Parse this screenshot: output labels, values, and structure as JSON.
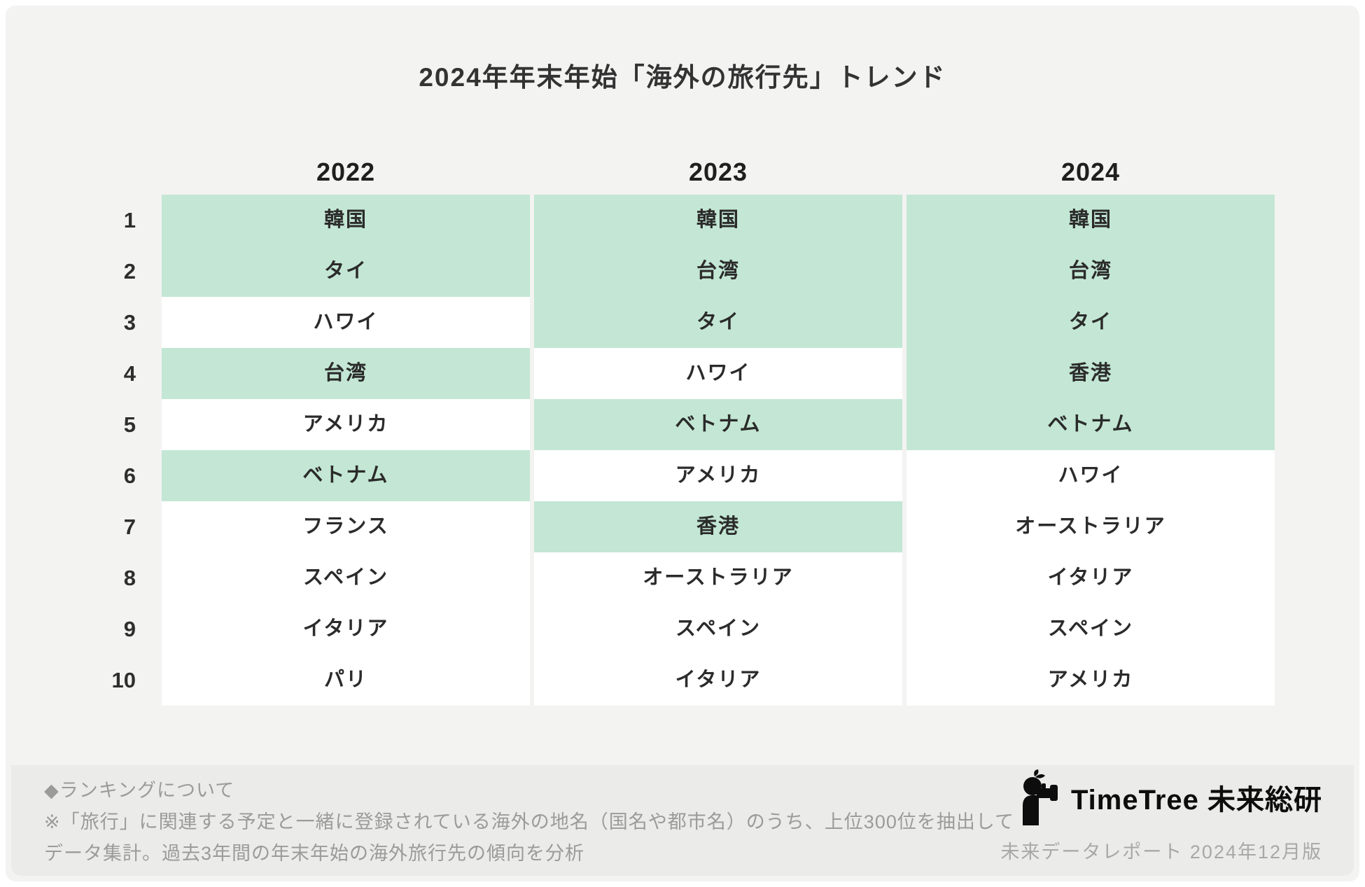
{
  "chart_data": {
    "type": "table",
    "title": "2024年年末年始「海外の旅行先」トレンド",
    "rank_labels": [
      "1",
      "2",
      "3",
      "4",
      "5",
      "6",
      "7",
      "8",
      "9",
      "10"
    ],
    "columns": [
      {
        "year": "2022",
        "rows": [
          {
            "name": "韓国",
            "highlight": true
          },
          {
            "name": "タイ",
            "highlight": true
          },
          {
            "name": "ハワイ",
            "highlight": false
          },
          {
            "name": "台湾",
            "highlight": true
          },
          {
            "name": "アメリカ",
            "highlight": false
          },
          {
            "name": "ベトナム",
            "highlight": true
          },
          {
            "name": "フランス",
            "highlight": false
          },
          {
            "name": "スペイン",
            "highlight": false
          },
          {
            "name": "イタリア",
            "highlight": false
          },
          {
            "name": "パリ",
            "highlight": false
          }
        ]
      },
      {
        "year": "2023",
        "rows": [
          {
            "name": "韓国",
            "highlight": true
          },
          {
            "name": "台湾",
            "highlight": true
          },
          {
            "name": "タイ",
            "highlight": true
          },
          {
            "name": "ハワイ",
            "highlight": false
          },
          {
            "name": "ベトナム",
            "highlight": true
          },
          {
            "name": "アメリカ",
            "highlight": false
          },
          {
            "name": "香港",
            "highlight": true
          },
          {
            "name": "オーストラリア",
            "highlight": false
          },
          {
            "name": "スペイン",
            "highlight": false
          },
          {
            "name": "イタリア",
            "highlight": false
          }
        ]
      },
      {
        "year": "2024",
        "rows": [
          {
            "name": "韓国",
            "highlight": true
          },
          {
            "name": "台湾",
            "highlight": true
          },
          {
            "name": "タイ",
            "highlight": true
          },
          {
            "name": "香港",
            "highlight": true
          },
          {
            "name": "ベトナム",
            "highlight": true
          },
          {
            "name": "ハワイ",
            "highlight": false
          },
          {
            "name": "オーストラリア",
            "highlight": false
          },
          {
            "name": "イタリア",
            "highlight": false
          },
          {
            "name": "スペイン",
            "highlight": false
          },
          {
            "name": "アメリカ",
            "highlight": false
          }
        ]
      }
    ],
    "legend_position": "none",
    "grid": false
  },
  "footer": {
    "notes": [
      "◆ランキングについて",
      "※「旅行」に関連する予定と一緒に登録されている海外の地名（国名や都市名）のうち、上位300位を抽出して",
      "データ集計。過去3年間の年末年始の海外旅行先の傾向を分析"
    ],
    "logo_icon": "timetree-observer-icon",
    "brand": "TimeTree 未来総研",
    "edition": "未来データレポート 2024年12月版"
  },
  "colors": {
    "highlight_green": "#c3e7d4",
    "card_bg": "#f3f3f2",
    "footer_bg": "#ebebe9",
    "cell_bg": "#ffffff",
    "text_dark": "#2b2b2b",
    "note_gray": "#9b9b9b"
  }
}
